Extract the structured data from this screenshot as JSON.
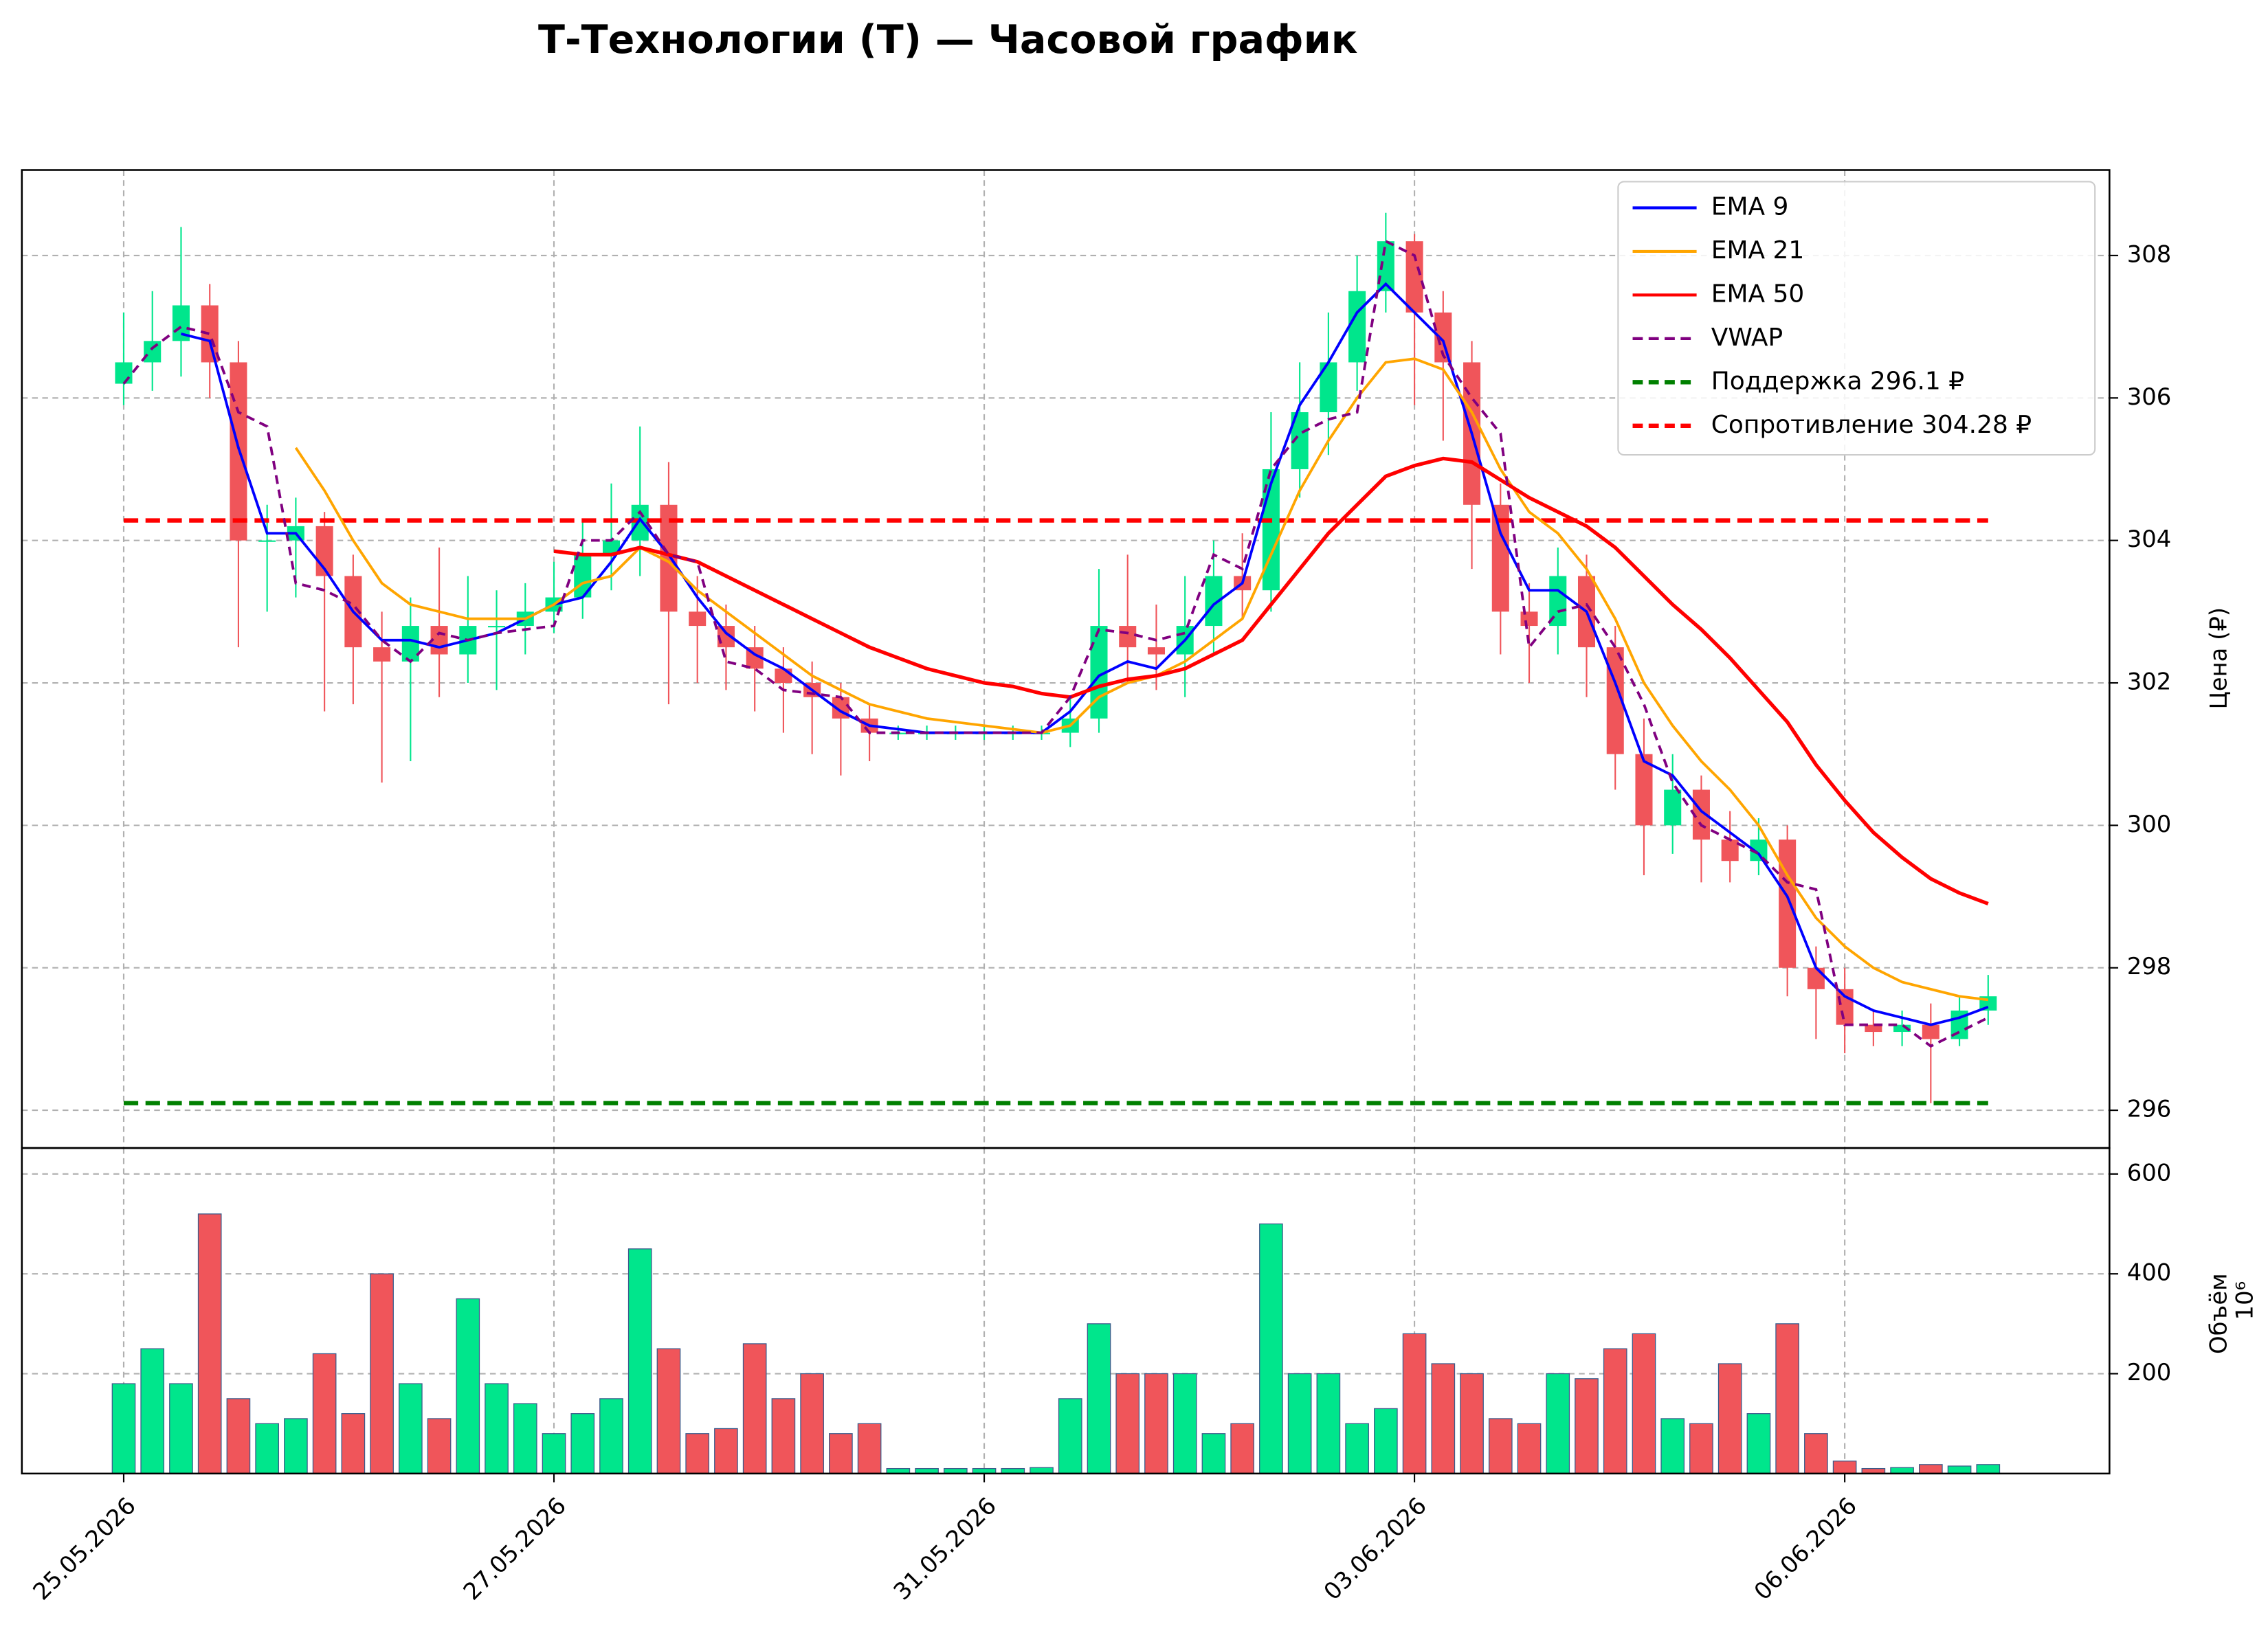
{
  "chart_data": {
    "type": "candlestick",
    "title": "Т-Технологии (T) — Часовой график",
    "y_label": "Цена (₽)",
    "volume_label": "Объём",
    "volume_offset": "10⁶",
    "xlim": [
      -3.55,
      69.23
    ],
    "xticks": [
      {
        "value": 0,
        "label": "25.05.2026"
      },
      {
        "value": 15,
        "label": "27.05.2026"
      },
      {
        "value": 30,
        "label": "31.05.2026"
      },
      {
        "value": 45,
        "label": "03.06.2026"
      },
      {
        "value": 60,
        "label": "06.06.2026"
      }
    ],
    "ylim": [
      295.47,
      309.2
    ],
    "yticks": [
      296,
      298,
      300,
      302,
      304,
      306,
      308
    ],
    "volume_ylim": [
      0,
      652
    ],
    "volume_yticks": [
      200,
      400,
      600
    ],
    "grid": true,
    "legend": "upper right",
    "up_color": "#00e68c",
    "down_color": "#f0555a",
    "open": [
      306.2,
      306.5,
      306.8,
      307.3,
      306.5,
      304.0,
      304.0,
      304.2,
      303.5,
      302.5,
      302.3,
      302.8,
      302.4,
      302.8,
      302.8,
      303.0,
      303.2,
      303.8,
      304.0,
      304.5,
      303.0,
      302.8,
      302.5,
      302.2,
      302.0,
      301.8,
      301.5,
      301.3,
      301.3,
      301.3,
      301.3,
      301.3,
      301.3,
      301.3,
      301.5,
      302.8,
      302.5,
      302.4,
      302.8,
      303.5,
      303.3,
      305.0,
      305.8,
      306.5,
      307.5,
      308.2,
      307.2,
      306.5,
      304.5,
      303.0,
      302.8,
      303.5,
      302.5,
      301.0,
      300.0,
      300.5,
      299.8,
      299.5,
      299.8,
      298.0,
      297.7,
      297.2,
      297.1,
      297.2,
      297.0,
      297.4
    ],
    "high": [
      307.2,
      307.5,
      308.4,
      307.6,
      306.8,
      304.5,
      304.6,
      304.4,
      303.8,
      303.0,
      303.2,
      303.9,
      303.5,
      303.3,
      303.4,
      303.7,
      304.3,
      304.8,
      305.6,
      305.1,
      303.5,
      303.1,
      302.8,
      302.5,
      302.3,
      302.0,
      301.7,
      301.4,
      301.4,
      301.4,
      301.4,
      301.4,
      301.4,
      301.8,
      303.6,
      303.8,
      303.1,
      303.5,
      304.0,
      304.1,
      305.8,
      306.5,
      307.2,
      308.0,
      308.6,
      308.3,
      307.5,
      306.8,
      304.8,
      303.4,
      303.9,
      303.8,
      302.8,
      301.5,
      301.0,
      300.7,
      300.2,
      300.1,
      300.0,
      298.3,
      298.0,
      297.4,
      297.4,
      297.5,
      297.6,
      297.9
    ],
    "low": [
      305.9,
      306.1,
      306.3,
      306.0,
      302.5,
      303.0,
      303.2,
      301.6,
      301.7,
      300.6,
      300.9,
      301.8,
      302.0,
      301.9,
      302.4,
      302.7,
      302.9,
      303.3,
      303.5,
      301.7,
      302.0,
      301.9,
      301.6,
      301.3,
      301.0,
      300.7,
      300.9,
      301.2,
      301.2,
      301.2,
      301.2,
      301.2,
      301.2,
      301.1,
      301.3,
      302.0,
      301.9,
      301.8,
      302.4,
      302.9,
      303.0,
      304.6,
      305.2,
      306.1,
      307.2,
      305.9,
      305.4,
      303.6,
      302.4,
      302.0,
      302.4,
      301.8,
      300.5,
      299.3,
      299.6,
      299.2,
      299.2,
      299.3,
      297.6,
      297.0,
      296.8,
      296.9,
      296.9,
      296.1,
      296.9,
      297.2
    ],
    "close": [
      306.5,
      306.8,
      307.3,
      306.5,
      304.0,
      304.0,
      304.2,
      303.5,
      302.5,
      302.3,
      302.8,
      302.4,
      302.8,
      302.8,
      303.0,
      303.2,
      303.8,
      304.0,
      304.5,
      303.0,
      302.8,
      302.5,
      302.2,
      302.0,
      301.8,
      301.5,
      301.3,
      301.3,
      301.3,
      301.3,
      301.3,
      301.3,
      301.3,
      301.5,
      302.8,
      302.5,
      302.4,
      302.8,
      303.5,
      303.3,
      305.0,
      305.8,
      306.5,
      307.5,
      308.2,
      307.2,
      306.5,
      304.5,
      303.0,
      302.8,
      303.5,
      302.5,
      301.0,
      300.0,
      300.5,
      299.8,
      299.5,
      299.8,
      298.0,
      297.7,
      297.2,
      297.1,
      297.2,
      297.0,
      297.4,
      297.6
    ],
    "volume": [
      180,
      250,
      180,
      520,
      150,
      100,
      110,
      240,
      120,
      400,
      180,
      110,
      350,
      180,
      140,
      80,
      120,
      150,
      450,
      250,
      80,
      90,
      260,
      150,
      200,
      80,
      100,
      10,
      10,
      10,
      10,
      10,
      12,
      150,
      300,
      200,
      200,
      200,
      80,
      100,
      500,
      200,
      200,
      100,
      130,
      280,
      220,
      200,
      110,
      100,
      200,
      190,
      250,
      280,
      110,
      100,
      220,
      120,
      300,
      80,
      25,
      10,
      12,
      18,
      15,
      18
    ],
    "series": [
      {
        "name": "EMA 9",
        "color": "#0000ff",
        "dashed": false,
        "values": [
          null,
          null,
          306.9,
          306.8,
          305.3,
          304.1,
          304.1,
          303.6,
          303.0,
          302.6,
          302.6,
          302.5,
          302.6,
          302.7,
          302.9,
          303.1,
          303.2,
          303.7,
          304.3,
          303.8,
          303.2,
          302.7,
          302.4,
          302.2,
          301.9,
          301.6,
          301.4,
          301.35,
          301.3,
          301.3,
          301.3,
          301.3,
          301.3,
          301.6,
          302.1,
          302.3,
          302.2,
          302.6,
          303.1,
          303.4,
          304.8,
          305.9,
          306.5,
          307.2,
          307.6,
          307.2,
          306.8,
          305.5,
          304.1,
          303.3,
          303.3,
          303.0,
          302.0,
          300.9,
          300.7,
          300.2,
          299.9,
          299.6,
          299.0,
          298.0,
          297.6,
          297.4,
          297.3,
          297.2,
          297.3,
          297.45
        ]
      },
      {
        "name": "EMA 21",
        "color": "#ffa500",
        "dashed": false,
        "values": [
          null,
          null,
          null,
          null,
          null,
          null,
          305.3,
          304.7,
          304.0,
          303.4,
          303.1,
          303.0,
          302.9,
          302.9,
          302.9,
          303.1,
          303.4,
          303.5,
          303.9,
          303.7,
          303.3,
          303.0,
          302.7,
          302.4,
          302.1,
          301.9,
          301.7,
          301.6,
          301.5,
          301.45,
          301.4,
          301.35,
          301.3,
          301.4,
          301.8,
          302.0,
          302.1,
          302.3,
          302.6,
          302.9,
          303.8,
          304.7,
          305.4,
          306.0,
          306.5,
          306.55,
          306.4,
          305.8,
          305.0,
          304.4,
          304.1,
          303.6,
          302.9,
          302.0,
          301.4,
          300.9,
          300.5,
          300.0,
          299.3,
          298.7,
          298.3,
          298.0,
          297.8,
          297.7,
          297.6,
          297.55
        ]
      },
      {
        "name": "EMA 50",
        "color": "#ff0000",
        "dashed": false,
        "values": [
          null,
          null,
          null,
          null,
          null,
          null,
          null,
          null,
          null,
          null,
          null,
          null,
          null,
          null,
          null,
          303.85,
          303.8,
          303.8,
          303.9,
          303.8,
          303.7,
          303.5,
          303.3,
          303.1,
          302.9,
          302.7,
          302.5,
          302.35,
          302.2,
          302.1,
          302.0,
          301.95,
          301.85,
          301.8,
          301.95,
          302.05,
          302.1,
          302.2,
          302.4,
          302.6,
          303.1,
          303.6,
          304.1,
          304.5,
          304.9,
          305.05,
          305.15,
          305.1,
          304.85,
          304.6,
          304.4,
          304.2,
          303.9,
          303.5,
          303.1,
          302.75,
          302.35,
          301.9,
          301.45,
          300.85,
          300.35,
          299.9,
          299.55,
          299.25,
          299.05,
          298.9
        ]
      },
      {
        "name": "VWAP",
        "color": "#800080",
        "dashed": true,
        "values": [
          306.2,
          306.7,
          307.0,
          306.9,
          305.8,
          305.6,
          303.4,
          303.3,
          303.1,
          302.6,
          302.3,
          302.7,
          302.6,
          302.7,
          302.75,
          302.8,
          304.0,
          304.0,
          304.4,
          303.8,
          303.7,
          302.3,
          302.2,
          301.9,
          301.85,
          301.8,
          301.3,
          301.3,
          301.3,
          301.3,
          301.3,
          301.3,
          301.3,
          301.8,
          302.75,
          302.7,
          302.6,
          302.7,
          303.8,
          303.6,
          305.0,
          305.5,
          305.7,
          305.8,
          308.2,
          308.0,
          306.6,
          306.0,
          305.5,
          302.5,
          303.0,
          303.1,
          302.5,
          301.7,
          300.6,
          300.0,
          299.8,
          299.6,
          299.2,
          299.1,
          297.2,
          297.2,
          297.2,
          296.9,
          297.1,
          297.3
        ]
      }
    ],
    "hlines": [
      {
        "name": "Поддержка 296.1 ₽",
        "value": 296.1,
        "color": "#008000"
      },
      {
        "name": "Сопротивление 304.28 ₽",
        "value": 304.28,
        "color": "#ff0000"
      }
    ]
  }
}
